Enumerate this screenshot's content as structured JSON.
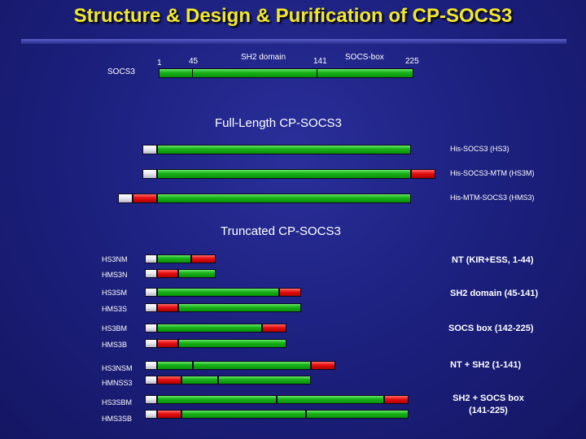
{
  "title": "Structure & Design & Purification of CP-SOCS3",
  "domain_map": {
    "label": "SOCS3",
    "positions": [
      "1",
      "45",
      "141",
      "225"
    ],
    "regions": [
      "SH2 domain",
      "SOCS-box"
    ]
  },
  "full_length": {
    "heading": "Full-Length CP-SOCS3",
    "constructs": [
      {
        "name": "His-SOCS3 (HS3)"
      },
      {
        "name": "His-SOCS3-MTM (HS3M)"
      },
      {
        "name": "His-MTM-SOCS3 (HMS3)"
      }
    ]
  },
  "truncated": {
    "heading": "Truncated CP-SOCS3",
    "constructs": [
      "HS3NM",
      "HMS3N",
      "HS3SM",
      "HMS3S",
      "HS3BM",
      "HMS3B",
      "HS3NSM",
      "HMNSS3",
      "HS3SBM",
      "HMS3SB"
    ],
    "descriptions": [
      "NT (KIR+ESS, 1-44)",
      "SH2 domain (45-141)",
      "SOCS box (142-225)",
      "NT + SH2 (1-141)",
      "SH2 + SOCS box",
      "(141-225)"
    ]
  },
  "colors": {
    "title": "#f2e82a",
    "background": "#1d2180",
    "protein": "#19b419",
    "mtm": "#e60f0f",
    "his_tag": "#e6e6ee"
  }
}
